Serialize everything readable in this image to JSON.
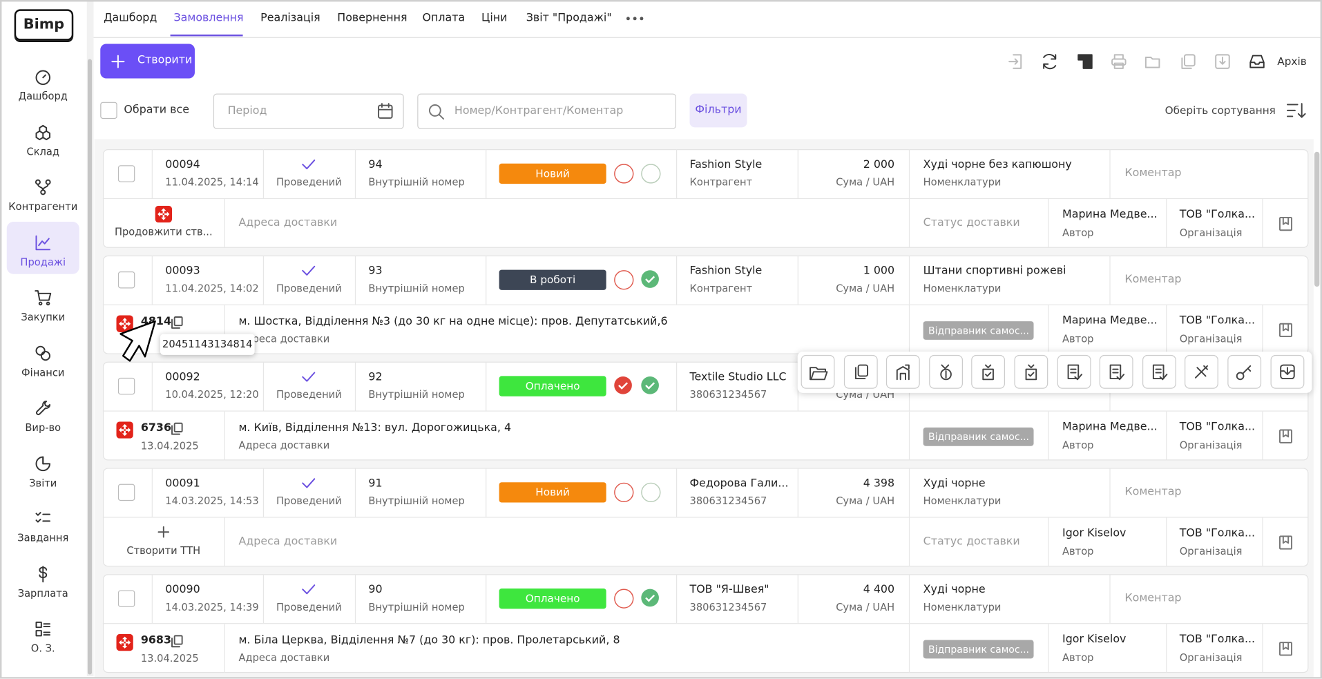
{
  "logo": "Bimp",
  "sidebar": [
    "Дашборд",
    "Склад",
    "Контрагенти",
    "Продажі",
    "Закупки",
    "Фінанси",
    "Вир-во",
    "Звіти",
    "Завдання",
    "Зарплата",
    "О. З."
  ],
  "tabs": [
    "Дашборд",
    "Замовлення",
    "Реалізація",
    "Повернення",
    "Оплата",
    "Ціни",
    "Звіт \"Продажі\""
  ],
  "toolbar": {
    "create": "Створити",
    "archive": "Архів"
  },
  "filters": {
    "select_all": "Обрати все",
    "period": "Період",
    "search": "Номер/Контрагент/Коментар",
    "filters": "Фільтри",
    "sort": "Оберіть сортування"
  },
  "tooltip": "20451143134814",
  "orders": [
    {
      "number": "00094",
      "datetime": "11.04.2025, 14:14",
      "status": "Проведений",
      "internal": "94",
      "internal_label": "Внутрішній номер",
      "badge": "Новий",
      "badge_color": "#f5890d",
      "indicators": [
        {
          "color": "#e05a4e",
          "done": false
        },
        {
          "color": "#b9cdb9",
          "done": false
        }
      ],
      "counterparty": "Fashion Style",
      "counterparty_sub": "Контрагент",
      "sum": "2 000",
      "sum_label": "Сума / UAH",
      "item": "Худі чорне без капюшону",
      "item_label": "Номенклатури",
      "comment": "Коментар",
      "delivery": {
        "continue": "Продовжити ств...",
        "address_placeholder": "Адреса доставки",
        "status_placeholder": "Статус доставки",
        "author": "Марина Медве...",
        "author_label": "Автор",
        "org": "ТОВ \"Голка...",
        "org_label": "Організація"
      }
    },
    {
      "number": "00093",
      "datetime": "11.04.2025, 14:02",
      "status": "Проведений",
      "internal": "93",
      "internal_label": "Внутрішній номер",
      "badge": "В роботі",
      "badge_color": "#3d4655",
      "indicators": [
        {
          "color": "#e05a4e",
          "done": false
        },
        {
          "color": "#5cb878",
          "done": true
        }
      ],
      "counterparty": "Fashion Style",
      "counterparty_sub": "Контрагент",
      "sum": "1 000",
      "sum_label": "Сума / UAH",
      "item": "Штани спортивні рожеві",
      "item_label": "Номенклатури",
      "comment": "Коментар",
      "delivery": {
        "ttn": "4814",
        "address": "м. Шостка, Відділення №3 (до 30 кг на одне місце): пров. Депутатський,6",
        "address_label": "Адреса доставки",
        "status_badge": "Відправник самос...",
        "author": "Марина Медве...",
        "author_label": "Автор",
        "org": "ТОВ \"Голка...",
        "org_label": "Організація"
      }
    },
    {
      "number": "00092",
      "datetime": "10.04.2025, 12:20",
      "status": "Проведений",
      "internal": "92",
      "internal_label": "Внутрішній номер",
      "badge": "Оплачено",
      "badge_color": "#3ee63e",
      "indicators": [
        {
          "color": "#e0443a",
          "done": true
        },
        {
          "color": "#5cb878",
          "done": true
        }
      ],
      "counterparty": "Textile Studio LLC",
      "counterparty_sub": "380631234567",
      "sum_label": "Сума / UAH",
      "delivery": {
        "ttn": "6736",
        "ttn_date": "13.04.2025",
        "address": "м. Київ, Відділення №13: вул. Дорогожицька, 4",
        "address_label": "Адреса доставки",
        "status_badge": "Відправник самос...",
        "author": "Марина Медве...",
        "author_label": "Автор",
        "org": "ТОВ \"Голка...",
        "org_label": "Організація"
      }
    },
    {
      "number": "00091",
      "datetime": "14.03.2025, 14:53",
      "status": "Проведений",
      "internal": "91",
      "internal_label": "Внутрішній номер",
      "badge": "Новий",
      "badge_color": "#f5890d",
      "indicators": [
        {
          "color": "#e05a4e",
          "done": false
        },
        {
          "color": "#b9cdb9",
          "done": false
        }
      ],
      "counterparty": "Федорова Гали...",
      "counterparty_sub": "380631234567",
      "sum": "4 398",
      "sum_label": "Сума / UAH",
      "item": "Худі чорне",
      "item_label": "Номенклатури",
      "comment": "Коментар",
      "delivery": {
        "create": "Створити ТТН",
        "address_placeholder": "Адреса доставки",
        "status_placeholder": "Статус доставки",
        "author": "Igor Kiselov",
        "author_label": "Автор",
        "org": "ТОВ \"Голка...",
        "org_label": "Організація"
      }
    },
    {
      "number": "00090",
      "datetime": "14.03.2025, 14:39",
      "status": "Проведений",
      "internal": "90",
      "internal_label": "Внутрішній номер",
      "badge": "Оплачено",
      "badge_color": "#3ee63e",
      "indicators": [
        {
          "color": "#e05a4e",
          "done": false
        },
        {
          "color": "#5cb878",
          "done": true
        }
      ],
      "counterparty": "ТОВ \"Я-Швея\"",
      "counterparty_sub": "380631234567",
      "sum": "4 400",
      "sum_label": "Сума / UAH",
      "item": "Худі чорне",
      "item_label": "Номенклатури",
      "comment": "Коментар",
      "delivery": {
        "ttn": "9683",
        "ttn_date": "13.04.2025",
        "address": "м. Біла Церква, Відділення №7 (до 30 кг): пров. Пролетарський, 8",
        "address_label": "Адреса доставки",
        "status_badge": "Відправник самос...",
        "author": "Igor Kiselov",
        "author_label": "Автор",
        "org": "ТОВ \"Голка...",
        "org_label": "Організація"
      }
    }
  ]
}
